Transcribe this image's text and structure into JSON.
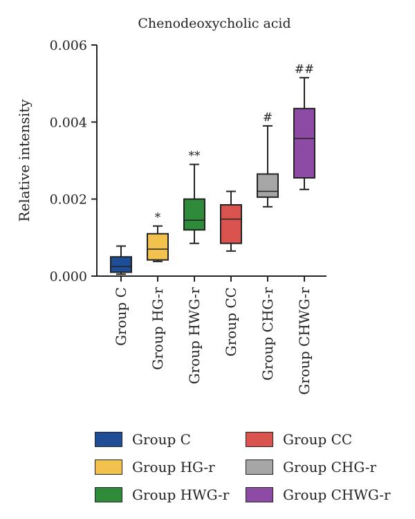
{
  "chart_data": {
    "type": "box",
    "title": "Chenodeoxycholic acid",
    "ylabel": "Relative intensity",
    "xlabel": "",
    "ylim": [
      0,
      0.006
    ],
    "yticks": [
      "0.000",
      "0.002",
      "0.004",
      "0.006"
    ],
    "ytick_values": [
      0,
      0.002,
      0.004,
      0.006
    ],
    "grid": false,
    "legend_position": "bottom",
    "categories": [
      "Group C",
      "Group HG-r",
      "Group HWG-r",
      "Group CC",
      "Group CHG-r",
      "Group CHWG-r"
    ],
    "boxes": [
      {
        "name": "Group C",
        "min": 5e-05,
        "q1": 0.0001,
        "median": 0.00025,
        "q3": 0.0005,
        "max": 0.00078,
        "color": "#1f4e96",
        "annotation": ""
      },
      {
        "name": "Group HG-r",
        "min": 0.00038,
        "q1": 0.00042,
        "median": 0.0007,
        "q3": 0.0011,
        "max": 0.0013,
        "color": "#f2c14e",
        "annotation": "*"
      },
      {
        "name": "Group HWG-r",
        "min": 0.00085,
        "q1": 0.0012,
        "median": 0.00145,
        "q3": 0.002,
        "max": 0.0029,
        "color": "#2e8b3a",
        "annotation": "**"
      },
      {
        "name": "Group CC",
        "min": 0.00065,
        "q1": 0.00085,
        "median": 0.00148,
        "q3": 0.00185,
        "max": 0.0022,
        "color": "#d9534f",
        "annotation": ""
      },
      {
        "name": "Group CHG-r",
        "min": 0.0018,
        "q1": 0.00205,
        "median": 0.0022,
        "q3": 0.00265,
        "max": 0.0039,
        "color": "#a6a6a6",
        "annotation": "#"
      },
      {
        "name": "Group CHWG-r",
        "min": 0.00225,
        "q1": 0.00255,
        "median": 0.00357,
        "q3": 0.00435,
        "max": 0.00515,
        "color": "#8e4ba6",
        "annotation": "##"
      }
    ],
    "legend": [
      {
        "label": "Group C",
        "color": "#1f4e96"
      },
      {
        "label": "Group CC",
        "color": "#d9534f"
      },
      {
        "label": "Group HG-r",
        "color": "#f2c14e"
      },
      {
        "label": "Group CHG-r",
        "color": "#a6a6a6"
      },
      {
        "label": "Group HWG-r",
        "color": "#2e8b3a"
      },
      {
        "label": "Group CHWG-r",
        "color": "#8e4ba6"
      }
    ]
  }
}
